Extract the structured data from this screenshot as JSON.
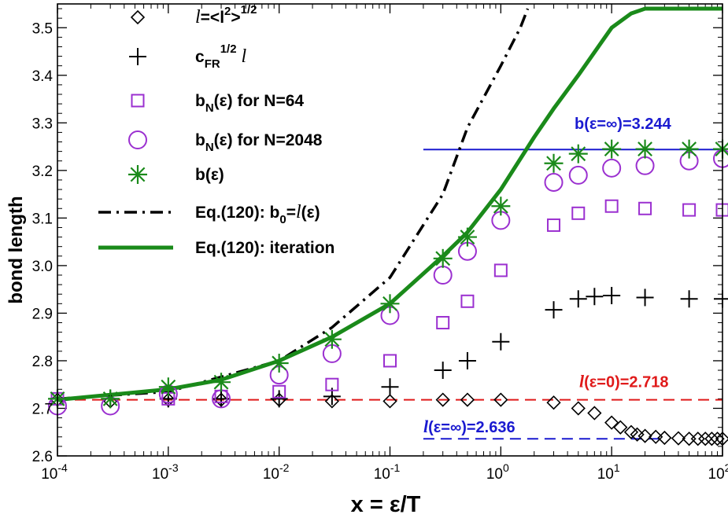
{
  "chart_data": {
    "type": "scatter",
    "xlabel": "x = ε/T",
    "ylabel": "bond length",
    "xscale": "log",
    "xlim": [
      0.0001,
      100
    ],
    "ylim": [
      2.6,
      3.55
    ],
    "x_tick_labels": [
      {
        "base": "10",
        "exp": "-4"
      },
      {
        "base": "10",
        "exp": "-3"
      },
      {
        "base": "10",
        "exp": "-2"
      },
      {
        "base": "10",
        "exp": "-1"
      },
      {
        "base": "10",
        "exp": "0"
      },
      {
        "base": "10",
        "exp": "1"
      },
      {
        "base": "10",
        "exp": "2"
      }
    ],
    "y_ticks": [
      "2.6",
      "2.7",
      "2.8",
      "2.9",
      "3.0",
      "3.1",
      "3.2",
      "3.3",
      "3.4",
      "3.5"
    ],
    "legend": {
      "position": "top-left",
      "entries": [
        {
          "key": "l_rms",
          "label": "l=<l²>^1/2",
          "label_parts": {
            "a": "l",
            "b": "=<l",
            "c": "2",
            "d": ">",
            "e": "1/2"
          }
        },
        {
          "key": "cfr_l",
          "label": "cFR^1/2 l",
          "label_parts": {
            "a": "c",
            "b": "FR",
            "c": "1/2",
            "d": " l"
          }
        },
        {
          "key": "bN64",
          "label": "bN(ε) for N=64",
          "label_parts": {
            "a": "b",
            "b": "N",
            "c": "(ε) for N=64"
          }
        },
        {
          "key": "bN2048",
          "label": "bN(ε) for N=2048",
          "label_parts": {
            "a": "b",
            "b": "N",
            "c": "(ε) for N=2048"
          }
        },
        {
          "key": "b_eps",
          "label": "b(ε)",
          "label_parts": {
            "a": "b(ε)"
          }
        },
        {
          "key": "eq_b0",
          "label": "Eq.(120): b0=l(ε)",
          "label_parts": {
            "a": "Eq.(120): b",
            "b": "0",
            "c": "=",
            "d": "l",
            "e": "(ε)"
          }
        },
        {
          "key": "eq_iter",
          "label": "Eq.(120): iteration",
          "label_parts": {
            "a": "Eq.(120): iteration"
          }
        }
      ]
    },
    "series": [
      {
        "key": "l_rms",
        "name": "l=<l²>^1/2",
        "marker": "diamond",
        "color": "#000000",
        "x": [
          0.0001,
          0.0003,
          0.001,
          0.003,
          0.01,
          0.03,
          0.1,
          0.3,
          0.5,
          1,
          3,
          5,
          7,
          10,
          12,
          15,
          17,
          20,
          25,
          30,
          40,
          50,
          60,
          70,
          80,
          90,
          100
        ],
        "y": [
          2.718,
          2.715,
          2.718,
          2.718,
          2.718,
          2.715,
          2.715,
          2.718,
          2.718,
          2.718,
          2.712,
          2.7,
          2.69,
          2.67,
          2.66,
          2.65,
          2.645,
          2.642,
          2.64,
          2.638,
          2.637,
          2.636,
          2.636,
          2.636,
          2.636,
          2.636,
          2.636
        ]
      },
      {
        "key": "cfr_l",
        "name": "cFR^1/2 l",
        "marker": "plus",
        "color": "#000000",
        "x": [
          0.0001,
          0.0003,
          0.001,
          0.003,
          0.01,
          0.03,
          0.1,
          0.3,
          0.5,
          1,
          3,
          5,
          7,
          10,
          20,
          50,
          100
        ],
        "y": [
          2.72,
          2.72,
          2.72,
          2.72,
          2.72,
          2.725,
          2.745,
          2.78,
          2.8,
          2.84,
          2.907,
          2.93,
          2.935,
          2.937,
          2.933,
          2.93,
          2.93
        ]
      },
      {
        "key": "bN64",
        "name": "bN(ε) for N=64",
        "marker": "square",
        "color": "#9b30d0",
        "x": [
          0.0001,
          0.001,
          0.003,
          0.01,
          0.03,
          0.1,
          0.3,
          0.5,
          1,
          3,
          5,
          10,
          20,
          50,
          100
        ],
        "y": [
          2.72,
          2.72,
          2.725,
          2.735,
          2.75,
          2.8,
          2.88,
          2.925,
          2.99,
          3.085,
          3.11,
          3.125,
          3.12,
          3.117,
          3.117
        ]
      },
      {
        "key": "bN2048",
        "name": "bN(ε) for N=2048",
        "marker": "circle",
        "color": "#9b30d0",
        "x": [
          0.0001,
          0.0003,
          0.001,
          0.003,
          0.01,
          0.03,
          0.1,
          0.3,
          0.5,
          1,
          3,
          5,
          10,
          20,
          50,
          100
        ],
        "y": [
          2.705,
          2.705,
          2.73,
          2.72,
          2.77,
          2.815,
          2.895,
          2.98,
          3.03,
          3.095,
          3.175,
          3.19,
          3.205,
          3.21,
          3.22,
          3.225
        ]
      },
      {
        "key": "b_eps",
        "name": "b(ε)",
        "marker": "asterisk",
        "color": "#1a8a1a",
        "x": [
          0.0001,
          0.0003,
          0.001,
          0.003,
          0.01,
          0.03,
          0.1,
          0.3,
          0.5,
          1,
          3,
          5,
          10,
          20,
          50,
          100
        ],
        "y": [
          2.72,
          2.72,
          2.745,
          2.755,
          2.795,
          2.845,
          2.92,
          3.015,
          3.06,
          3.125,
          3.215,
          3.235,
          3.245,
          3.245,
          3.245,
          3.245
        ]
      },
      {
        "key": "eq_b0",
        "name": "Eq.(120): b0=l(ε)",
        "line": "dashdot",
        "color": "#000000",
        "x": [
          0.0001,
          0.001,
          0.01,
          0.03,
          0.1,
          0.3,
          0.5,
          1,
          1.5,
          1.75
        ],
        "y": [
          2.72,
          2.735,
          2.8,
          2.87,
          2.975,
          3.15,
          3.29,
          3.42,
          3.5,
          3.54
        ]
      },
      {
        "key": "eq_iter",
        "name": "Eq.(120): iteration",
        "line": "solid",
        "color": "#1a8a1a",
        "x": [
          0.0001,
          0.001,
          0.003,
          0.01,
          0.03,
          0.1,
          0.3,
          0.5,
          1,
          2,
          3,
          5,
          10,
          15,
          20,
          50,
          100
        ],
        "y": [
          2.718,
          2.74,
          2.76,
          2.8,
          2.85,
          2.92,
          3.02,
          3.07,
          3.16,
          3.27,
          3.33,
          3.4,
          3.5,
          3.53,
          3.54,
          3.54,
          3.54
        ]
      }
    ],
    "reference_lines": [
      {
        "key": "b_inf",
        "label": "b(ε=∞)=3.244",
        "y": 3.244,
        "x_from": 0.2,
        "x_to": 100,
        "style": "solid",
        "color": "#1a1ad0"
      },
      {
        "key": "l_zero",
        "label_parts": {
          "a": "l",
          "b": "(ε=0)=2.718"
        },
        "label": "l(ε=0)=2.718",
        "y": 2.718,
        "x_from": 0.0001,
        "x_to": 100,
        "style": "dashed",
        "color": "#e01a1a"
      },
      {
        "key": "l_inf",
        "label_parts": {
          "a": "l",
          "b": "(ε=∞)=2.636"
        },
        "label": "l(ε=∞)=2.636",
        "y": 2.636,
        "x_from": 0.2,
        "x_to": 30,
        "style": "dashed",
        "color": "#1a1ad0"
      }
    ]
  }
}
